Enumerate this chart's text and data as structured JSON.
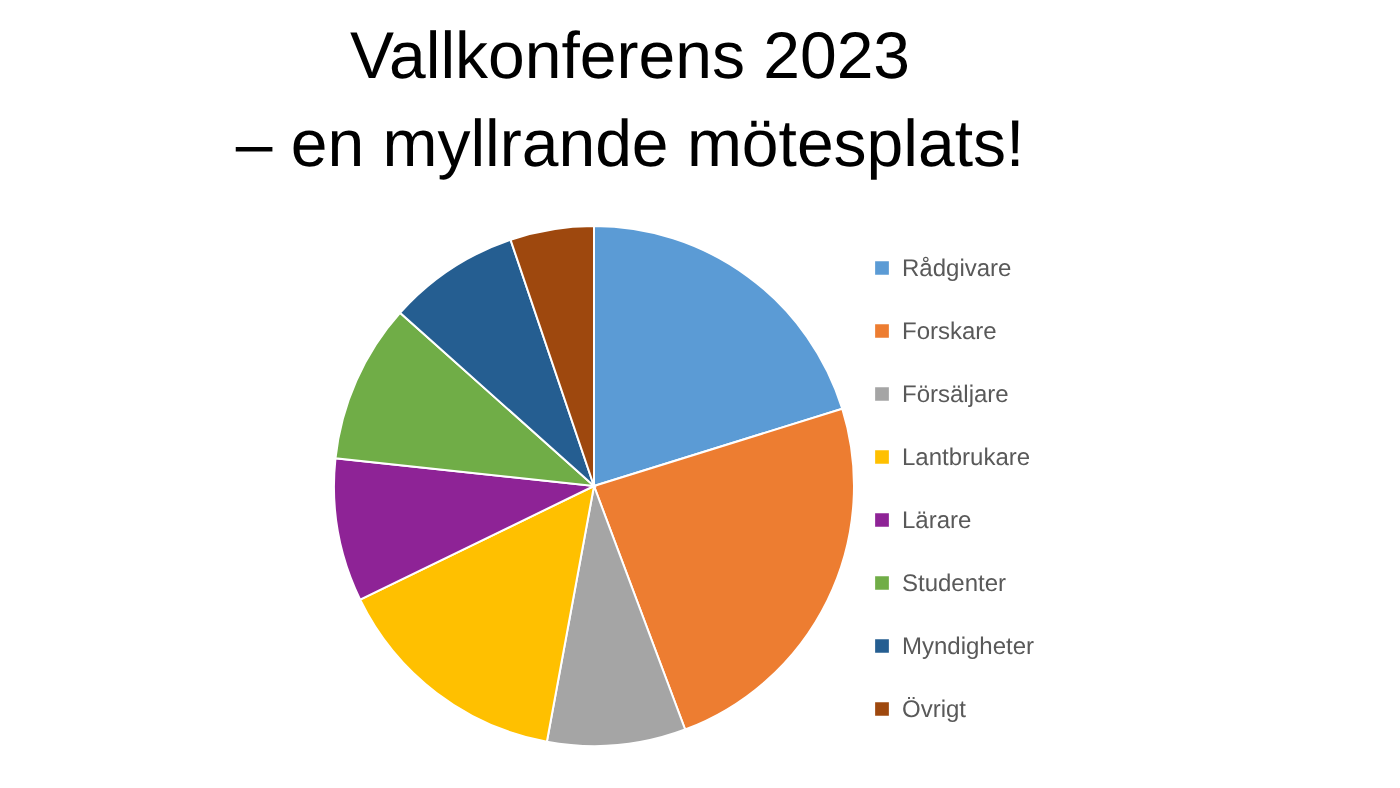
{
  "chart_data": {
    "type": "pie",
    "title": "Vallkonferens 2023\n– en myllrande mötesplats!",
    "categories": [
      "Rådgivare",
      "Forskare",
      "Försäljare",
      "Lantbrukare",
      "Lärare",
      "Studenter",
      "Myndigheter",
      "Övrigt"
    ],
    "values": [
      20.2,
      24.1,
      8.6,
      14.9,
      8.9,
      9.9,
      8.2,
      5.2
    ],
    "colors": [
      "#5b9bd5",
      "#ed7d31",
      "#a5a5a5",
      "#ffc000",
      "#8e2396",
      "#70ad47",
      "#255e91",
      "#9e480e"
    ],
    "legend": "right"
  }
}
